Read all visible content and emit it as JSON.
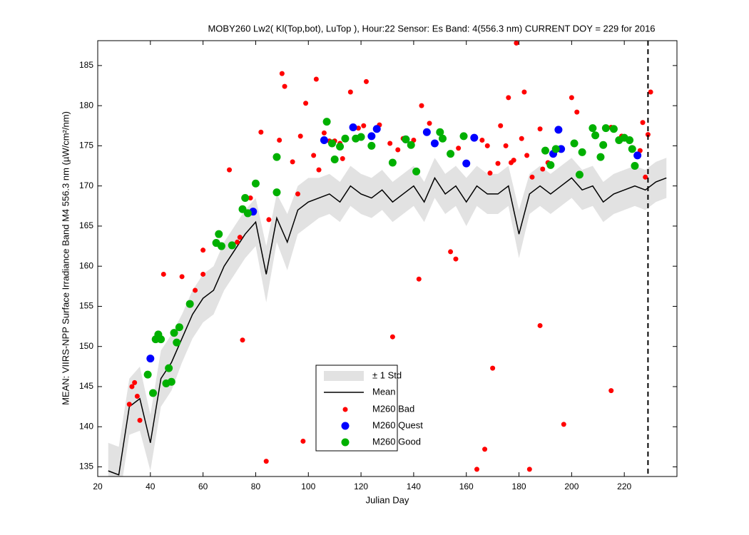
{
  "chart_data": {
    "type": "scatter",
    "title": "MOBY260   Lw2( Kl(Top,bot), LuTop ),   Hour:22 Sensor: Es Band: 4(556.3 nm)   CURRENT DOY = 229 for 2016",
    "x_label": "Julian Day",
    "y_label": "MEAN: VIIRS-NPP Surface Irradiance Band M4 556.3 nm (µW/cm²/nm)",
    "xlim": [
      20,
      240
    ],
    "ylim": [
      133.8,
      188.1
    ],
    "xticks": [
      20,
      40,
      60,
      80,
      100,
      120,
      140,
      160,
      180,
      200,
      220
    ],
    "yticks": [
      135,
      140,
      145,
      150,
      155,
      160,
      165,
      170,
      175,
      180,
      185
    ],
    "current_doy": 229,
    "mean": {
      "name": "Mean",
      "color": "#000000",
      "std_name": "± 1 Std",
      "std_color": "#e2e2e2",
      "x": [
        24,
        28,
        32,
        36,
        40,
        44,
        48,
        52,
        56,
        60,
        64,
        68,
        72,
        76,
        80,
        84,
        88,
        92,
        96,
        100,
        104,
        108,
        112,
        116,
        120,
        124,
        128,
        132,
        136,
        140,
        144,
        148,
        152,
        156,
        160,
        164,
        168,
        172,
        176,
        180,
        184,
        188,
        192,
        196,
        200,
        204,
        208,
        212,
        216,
        220,
        224,
        228,
        232,
        236
      ],
      "values": [
        134.5,
        134,
        142.5,
        143.5,
        138,
        146,
        148,
        151,
        154,
        156,
        157,
        160,
        162,
        164,
        165.5,
        159,
        166,
        163,
        167,
        168,
        168.5,
        169,
        168,
        170,
        169,
        168.5,
        169.5,
        168,
        169,
        170,
        168,
        171,
        169,
        170,
        168,
        170,
        169,
        169,
        170,
        164,
        169,
        170,
        169,
        170,
        171,
        169.5,
        170,
        168,
        169,
        169.5,
        170,
        169.5,
        170.5,
        171
      ],
      "std": [
        3.5,
        3.5,
        3.5,
        4,
        3.5,
        3.5,
        3.5,
        3,
        3,
        3,
        3,
        3,
        3,
        3,
        3,
        3.5,
        3,
        3.5,
        3,
        3,
        2.5,
        2.5,
        2.5,
        2.5,
        2.5,
        2.5,
        2.5,
        2.5,
        2.5,
        2.5,
        2.5,
        2.5,
        2.5,
        2.5,
        3,
        2.5,
        2.5,
        2.5,
        2.5,
        3,
        2.5,
        2.5,
        2.5,
        2.5,
        2.5,
        2.5,
        2.5,
        2.5,
        2.5,
        2.5,
        2.5,
        2.5,
        2.5,
        2.5
      ]
    },
    "series": [
      {
        "name": "M260 Bad",
        "color": "#ff0000",
        "radius": 3.5,
        "x": [
          32,
          33,
          34,
          35,
          36,
          45,
          52,
          57,
          60,
          60,
          70,
          73,
          74,
          75,
          78,
          82,
          84,
          85,
          89,
          90,
          91,
          94,
          96,
          97,
          98,
          99,
          102,
          103,
          104,
          106,
          108,
          110,
          112,
          113,
          116,
          119,
          121,
          122,
          127,
          131,
          132,
          134,
          136,
          140,
          142,
          143,
          146,
          154,
          156,
          157,
          164,
          166,
          167,
          168,
          169,
          170,
          172,
          173,
          175,
          176,
          177,
          178,
          179,
          181,
          182,
          183,
          184,
          185,
          188,
          188,
          189,
          191,
          197,
          200,
          202,
          215,
          215,
          219,
          226,
          227,
          228,
          229,
          230
        ],
        "values": [
          142.8,
          145,
          145.5,
          143.8,
          140.8,
          159,
          158.7,
          157,
          162,
          159,
          172,
          163,
          163.6,
          150.8,
          168.5,
          176.7,
          135.7,
          165.8,
          175.7,
          184,
          182.4,
          173,
          169,
          176.2,
          138.2,
          180.3,
          173.8,
          183.3,
          172,
          176.6,
          175.6,
          175.6,
          175.3,
          173.4,
          181.7,
          177.2,
          177.5,
          183,
          177.6,
          175.3,
          151.2,
          174.5,
          175.9,
          175.7,
          158.4,
          180,
          177.8,
          161.8,
          160.9,
          174.7,
          134.7,
          175.7,
          137.2,
          175,
          171.6,
          147.3,
          172.8,
          177.5,
          175,
          181,
          172.9,
          173.2,
          187.8,
          175.9,
          181.7,
          173.8,
          134.7,
          171.1,
          177.1,
          152.6,
          172.1,
          172.9,
          140.3,
          181,
          179.2,
          144.5,
          177.3,
          176.2,
          174.4,
          177.9,
          171.1,
          176.4,
          181.7
        ]
      },
      {
        "name": "M260 Quest",
        "color": "#0000ff",
        "radius": 5.5,
        "x": [
          40,
          79,
          106,
          117,
          124,
          126,
          137,
          145,
          148,
          160,
          163,
          193,
          195,
          196,
          225
        ],
        "values": [
          148.5,
          166.8,
          175.7,
          177.3,
          176.2,
          177.1,
          175.8,
          176.7,
          175.3,
          172.8,
          176,
          174,
          177,
          174.6,
          173.8
        ]
      },
      {
        "name": "M260 Good",
        "color": "#00b000",
        "radius": 5.5,
        "x": [
          39,
          41,
          42,
          43,
          44,
          46,
          47,
          48,
          49,
          50,
          51,
          55,
          65,
          66,
          67,
          71,
          75,
          76,
          77,
          80,
          88,
          88,
          107,
          109,
          110,
          112,
          114,
          118,
          120,
          124,
          132,
          137,
          139,
          141,
          150,
          151,
          154,
          159,
          190,
          192,
          194,
          201,
          203,
          204,
          208,
          209,
          211,
          212,
          213,
          216,
          218,
          220,
          222,
          223,
          224
        ],
        "values": [
          146.5,
          144.2,
          150.9,
          151.5,
          150.9,
          145.4,
          147.3,
          145.6,
          151.7,
          150.5,
          152.4,
          155.3,
          162.9,
          164,
          162.5,
          162.6,
          167.1,
          168.5,
          166.6,
          170.3,
          169.2,
          173.6,
          178,
          175.3,
          173.3,
          174.9,
          175.9,
          175.9,
          176.1,
          175,
          172.9,
          175.8,
          175.1,
          171.8,
          176.7,
          175.9,
          174,
          176.2,
          174.4,
          172.6,
          174.6,
          175.3,
          171.4,
          174.2,
          177.2,
          176.3,
          173.6,
          175.1,
          177.2,
          177.1,
          175.7,
          176,
          175.7,
          174.6,
          172.5
        ]
      }
    ]
  }
}
